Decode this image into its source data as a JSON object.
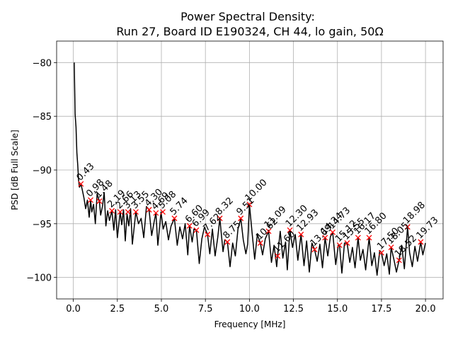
{
  "chart_data": {
    "type": "line",
    "title": "Power Spectral Density:",
    "subtitle": "Run 27, Board ID E190324, CH 44, lo gain, 50Ω",
    "xlabel": "Frequency [MHz]",
    "ylabel": "PSD [dB Full Scale]",
    "xlim": [
      -0.95,
      21.0
    ],
    "ylim": [
      -102.0,
      -78.0
    ],
    "xticks": [
      0.0,
      2.5,
      5.0,
      7.5,
      10.0,
      12.5,
      15.0,
      17.5,
      20.0
    ],
    "xtick_labels": [
      "0.0",
      "2.5",
      "5.0",
      "7.5",
      "10.0",
      "12.5",
      "15.0",
      "17.5",
      "20.0"
    ],
    "yticks": [
      -80,
      -85,
      -90,
      -95,
      -100
    ],
    "ytick_labels": [
      "−80",
      "−85",
      "−90",
      "−95",
      "−100"
    ],
    "grid": true,
    "line_color": "#000000",
    "marker_color": "#ff0000",
    "series": [
      {
        "x": [
          0.05,
          0.1,
          0.15,
          0.2,
          0.25,
          0.3,
          0.35,
          0.43,
          0.5,
          0.6,
          0.7,
          0.8,
          0.9,
          0.98,
          1.05,
          1.15,
          1.25,
          1.35,
          1.48,
          1.55,
          1.65,
          1.75,
          1.85,
          1.95,
          2.05,
          2.19,
          2.3,
          2.4,
          2.5,
          2.66,
          2.75,
          2.85,
          2.95,
          3.05,
          3.15,
          3.25,
          3.35,
          3.55,
          3.7,
          3.85,
          4.0,
          4.15,
          4.3,
          4.45,
          4.6,
          4.69,
          4.8,
          4.98,
          5.1,
          5.25,
          5.4,
          5.55,
          5.74,
          5.9,
          6.05,
          6.2,
          6.35,
          6.5,
          6.6,
          6.75,
          6.85,
          6.99,
          7.15,
          7.3,
          7.45,
          7.62,
          7.75,
          7.9,
          8.05,
          8.2,
          8.32,
          8.5,
          8.6,
          8.75,
          8.9,
          9.05,
          9.2,
          9.35,
          9.51,
          9.65,
          9.8,
          9.9,
          10.0,
          10.15,
          10.3,
          10.45,
          10.62,
          10.75,
          10.9,
          11.09,
          11.25,
          11.4,
          11.55,
          11.6,
          11.75,
          11.9,
          12.05,
          12.15,
          12.3,
          12.45,
          12.6,
          12.75,
          12.93,
          13.1,
          13.25,
          13.4,
          13.55,
          13.7,
          13.85,
          14.0,
          14.15,
          14.3,
          14.45,
          14.6,
          14.73,
          14.9,
          15.05,
          15.12,
          15.25,
          15.4,
          15.55,
          15.7,
          15.85,
          16.0,
          16.17,
          16.3,
          16.45,
          16.6,
          16.8,
          16.95,
          17.1,
          17.25,
          17.4,
          17.5,
          17.65,
          17.8,
          17.95,
          18.05,
          18.2,
          18.35,
          18.5,
          18.65,
          18.8,
          18.98,
          19.1,
          19.25,
          19.4,
          19.55,
          19.73,
          19.85,
          20.0
        ],
        "y": [
          -80.0,
          -84.8,
          -86.0,
          -88.4,
          -89.5,
          -91.0,
          -91.6,
          -91.3,
          -91.8,
          -92.6,
          -93.6,
          -92.8,
          -94.4,
          -92.8,
          -93.9,
          -93.2,
          -95.0,
          -92.2,
          -92.9,
          -94.2,
          -93.4,
          -92.1,
          -95.2,
          -93.8,
          -94.7,
          -93.8,
          -95.6,
          -93.7,
          -96.3,
          -93.9,
          -95.1,
          -93.7,
          -96.6,
          -94.1,
          -95.2,
          -93.6,
          -96.9,
          -93.9,
          -95.0,
          -94.5,
          -96.3,
          -93.4,
          -93.7,
          -96.1,
          -94.7,
          -94.0,
          -97.0,
          -93.9,
          -95.5,
          -94.8,
          -96.5,
          -95.2,
          -94.5,
          -97.0,
          -95.3,
          -96.4,
          -95.0,
          -97.9,
          -95.2,
          -96.7,
          -95.5,
          -95.6,
          -98.7,
          -96.4,
          -95.3,
          -96.0,
          -97.8,
          -95.5,
          -98.0,
          -96.3,
          -94.5,
          -97.6,
          -96.5,
          -96.7,
          -99.0,
          -96.8,
          -98.0,
          -95.5,
          -94.5,
          -96.5,
          -97.8,
          -96.9,
          -93.2,
          -95.8,
          -98.3,
          -96.0,
          -96.8,
          -97.9,
          -96.4,
          -95.7,
          -98.6,
          -97.0,
          -99.0,
          -98.0,
          -95.7,
          -98.2,
          -96.7,
          -99.3,
          -95.6,
          -97.2,
          -96.0,
          -98.4,
          -96.0,
          -98.9,
          -96.6,
          -99.5,
          -96.8,
          -97.4,
          -98.5,
          -96.9,
          -99.1,
          -96.3,
          -98.0,
          -96.2,
          -95.8,
          -98.8,
          -97.0,
          -97.0,
          -99.6,
          -96.8,
          -96.8,
          -98.6,
          -97.2,
          -99.1,
          -96.3,
          -98.4,
          -97.4,
          -99.3,
          -96.3,
          -98.9,
          -97.7,
          -99.8,
          -97.5,
          -97.7,
          -98.9,
          -97.8,
          -99.7,
          -97.2,
          -98.3,
          -99.5,
          -98.4,
          -97.0,
          -99.2,
          -95.3,
          -97.7,
          -99.0,
          -97.1,
          -98.5,
          -96.7,
          -97.9,
          -96.8
        ]
      }
    ],
    "peaks": [
      {
        "x": 0.43,
        "y": -91.3,
        "label": "0.43"
      },
      {
        "x": 0.98,
        "y": -92.8,
        "label": "0.98"
      },
      {
        "x": 1.48,
        "y": -92.9,
        "label": "1.48"
      },
      {
        "x": 2.19,
        "y": -93.8,
        "label": "2.19"
      },
      {
        "x": 2.66,
        "y": -93.9,
        "label": "2.66"
      },
      {
        "x": 3.1,
        "y": -93.9,
        "label": "3.13"
      },
      {
        "x": 3.55,
        "y": -93.9,
        "label": "3.55"
      },
      {
        "x": 4.3,
        "y": -93.7,
        "label": "4.30"
      },
      {
        "x": 4.69,
        "y": -94.0,
        "label": "4.69"
      },
      {
        "x": 5.08,
        "y": -93.9,
        "label": "5.08"
      },
      {
        "x": 5.74,
        "y": -94.5,
        "label": "5.74"
      },
      {
        "x": 6.6,
        "y": -95.2,
        "label": "6.60"
      },
      {
        "x": 6.99,
        "y": -95.6,
        "label": "6.99"
      },
      {
        "x": 7.62,
        "y": -96.0,
        "label": "7.62"
      },
      {
        "x": 8.32,
        "y": -94.5,
        "label": "8.32"
      },
      {
        "x": 8.75,
        "y": -96.7,
        "label": "8.75"
      },
      {
        "x": 9.51,
        "y": -94.5,
        "label": "9.51"
      },
      {
        "x": 10.0,
        "y": -93.2,
        "label": "10.00"
      },
      {
        "x": 10.62,
        "y": -96.8,
        "label": "10.62"
      },
      {
        "x": 11.09,
        "y": -95.7,
        "label": "11.09"
      },
      {
        "x": 11.6,
        "y": -98.0,
        "label": "11.60"
      },
      {
        "x": 12.3,
        "y": -95.6,
        "label": "12.30"
      },
      {
        "x": 12.93,
        "y": -96.0,
        "label": "12.93"
      },
      {
        "x": 13.7,
        "y": -97.4,
        "label": "13.69"
      },
      {
        "x": 14.3,
        "y": -96.3,
        "label": "14.34"
      },
      {
        "x": 14.73,
        "y": -95.8,
        "label": "14.73"
      },
      {
        "x": 15.12,
        "y": -97.0,
        "label": "15.12"
      },
      {
        "x": 15.55,
        "y": -96.8,
        "label": "15.55"
      },
      {
        "x": 16.17,
        "y": -96.3,
        "label": "16.17"
      },
      {
        "x": 16.8,
        "y": -96.3,
        "label": "16.80"
      },
      {
        "x": 17.5,
        "y": -97.7,
        "label": "17.50"
      },
      {
        "x": 18.05,
        "y": -97.2,
        "label": "18.05"
      },
      {
        "x": 18.5,
        "y": -98.4,
        "label": "18.52"
      },
      {
        "x": 18.98,
        "y": -95.3,
        "label": "18.98"
      },
      {
        "x": 19.73,
        "y": -96.7,
        "label": "19.73"
      }
    ]
  }
}
